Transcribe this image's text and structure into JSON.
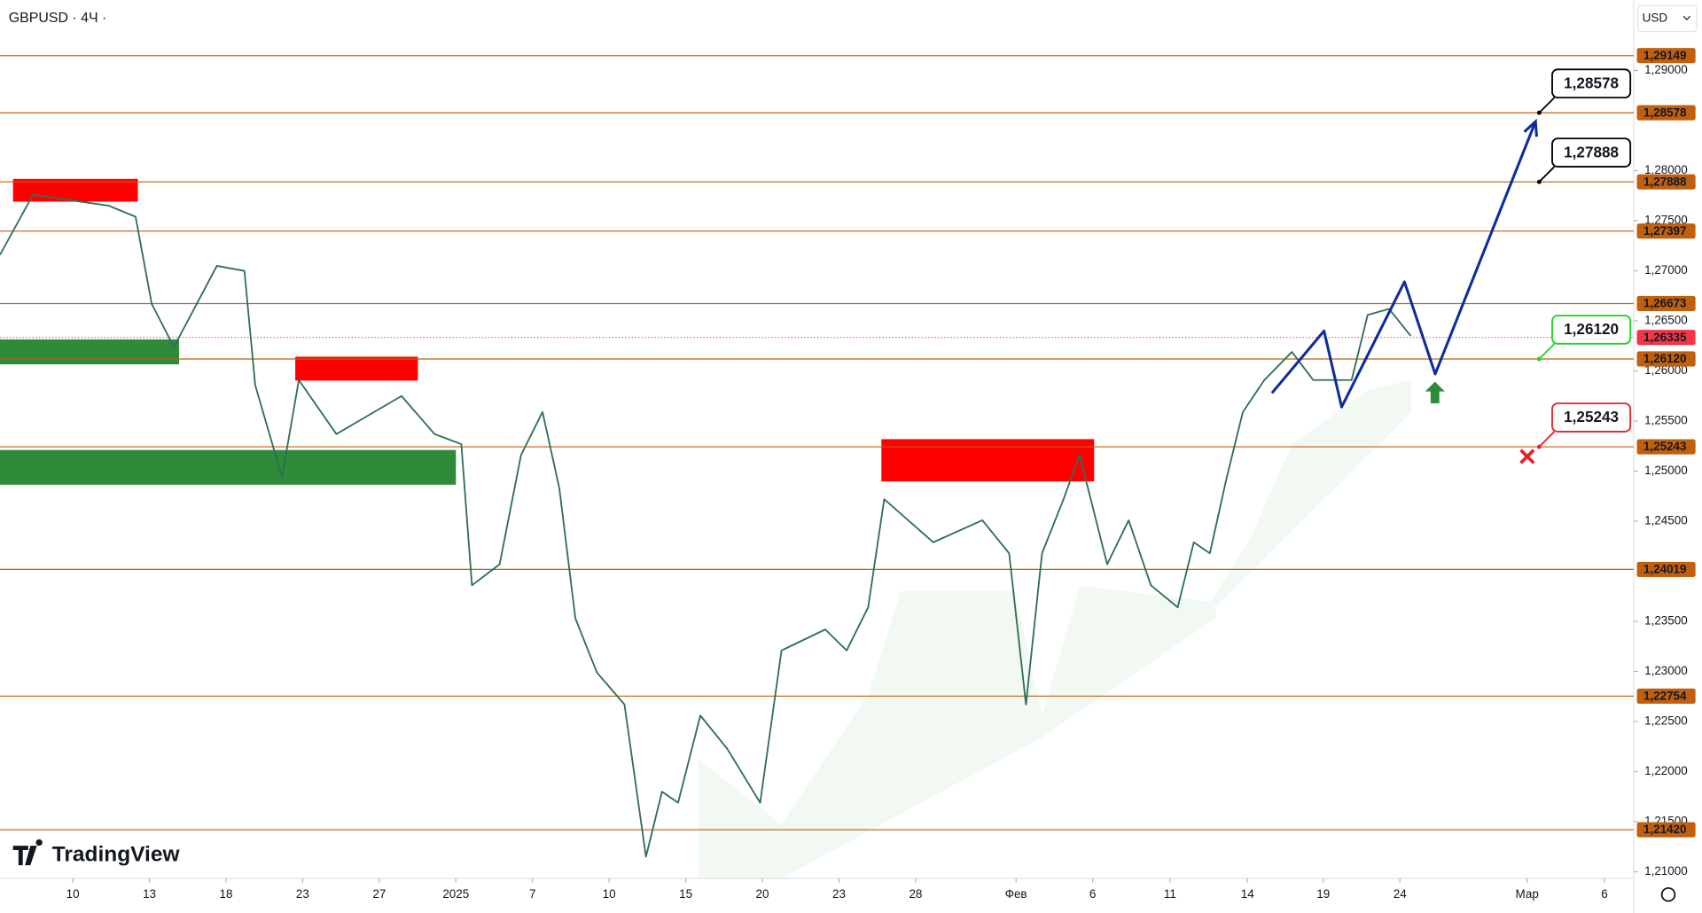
{
  "header": {
    "symbol": "GBPUSD · 4Ч ·",
    "currency": "USD",
    "logo": "TradingView"
  },
  "chart_data": {
    "type": "line",
    "xlim": [
      -0.95,
      20.37
    ],
    "ylim": [
      1.20935,
      1.29704
    ],
    "xticks": [
      {
        "value": 0,
        "label": "10"
      },
      {
        "value": 1,
        "label": "13"
      },
      {
        "value": 2,
        "label": "18"
      },
      {
        "value": 3,
        "label": "23"
      },
      {
        "value": 4,
        "label": "27"
      },
      {
        "value": 5,
        "label": "2025"
      },
      {
        "value": 6,
        "label": "7"
      },
      {
        "value": 7,
        "label": "10"
      },
      {
        "value": 8,
        "label": "15"
      },
      {
        "value": 9,
        "label": "20"
      },
      {
        "value": 10,
        "label": "23"
      },
      {
        "value": 11,
        "label": "28"
      },
      {
        "value": 12.31,
        "label": "Фев"
      },
      {
        "value": 13.31,
        "label": "6"
      },
      {
        "value": 14.32,
        "label": "11"
      },
      {
        "value": 15.33,
        "label": "14"
      },
      {
        "value": 16.32,
        "label": "19"
      },
      {
        "value": 17.32,
        "label": "24"
      },
      {
        "value": 18.98,
        "label": "Мар"
      },
      {
        "value": 19.99,
        "label": "6"
      }
    ],
    "yticks": [
      {
        "value": 1.29,
        "label": "1,29000"
      },
      {
        "value": 1.28,
        "label": "1,28000"
      },
      {
        "value": 1.275,
        "label": "1,27500"
      },
      {
        "value": 1.27,
        "label": "1,27000"
      },
      {
        "value": 1.265,
        "label": "1,26500"
      },
      {
        "value": 1.26,
        "label": "1,26000"
      },
      {
        "value": 1.255,
        "label": "1,25500"
      },
      {
        "value": 1.25,
        "label": "1,25000"
      },
      {
        "value": 1.245,
        "label": "1,24500"
      },
      {
        "value": 1.235,
        "label": "1,23500"
      },
      {
        "value": 1.23,
        "label": "1,23000"
      },
      {
        "value": 1.225,
        "label": "1,22500"
      },
      {
        "value": 1.22,
        "label": "1,22000"
      },
      {
        "value": 1.215,
        "label": "1,21500"
      },
      {
        "value": 1.21,
        "label": "1,21000"
      }
    ],
    "series": [
      {
        "color": "#2f6e5a",
        "x": [
          -0.95,
          -0.52,
          0.47,
          0.82,
          1.03,
          1.32,
          1.88,
          2.24,
          2.38,
          2.73,
          2.95,
          3.44,
          4.29,
          4.72,
          5.07,
          5.21,
          5.57,
          5.85,
          6.13,
          6.35,
          6.56,
          6.84,
          7.2,
          7.48,
          7.69,
          7.9,
          8.19,
          8.54,
          8.97,
          9.25,
          9.82,
          10.1,
          10.38,
          10.59,
          11.23,
          11.87,
          12.22,
          12.44,
          12.65,
          12.93,
          13.14,
          13.5,
          13.78,
          14.07,
          14.42,
          14.63,
          14.84,
          15.06,
          15.27,
          15.55,
          15.91,
          16.19,
          16.69,
          16.9,
          17.18,
          17.46
        ],
        "values": [
          1.2716,
          1.2776,
          1.2765,
          1.2754,
          1.2667,
          1.2624,
          1.2705,
          1.27,
          1.2586,
          1.2494,
          1.2591,
          1.2537,
          1.2575,
          1.2537,
          1.2527,
          1.2386,
          1.2407,
          1.2516,
          1.2559,
          1.2483,
          1.2353,
          1.2299,
          1.2267,
          1.2115,
          1.218,
          1.2169,
          1.2256,
          1.2223,
          1.2169,
          1.2321,
          1.2342,
          1.2321,
          1.2364,
          1.2472,
          1.2429,
          1.2451,
          1.2418,
          1.2267,
          1.2418,
          1.2472,
          1.2516,
          1.2407,
          1.2451,
          1.2386,
          1.2364,
          1.2429,
          1.2418,
          1.2494,
          1.2559,
          1.2591,
          1.2619,
          1.2591,
          1.2591,
          1.2656,
          1.2662,
          1.2635
        ]
      },
      {
        "color": "#0d2d9c",
        "x": [
          15.65,
          16.33,
          16.56,
          17.38,
          17.78,
          19.09
        ],
        "values": [
          1.2578,
          1.264,
          1.2564,
          1.2689,
          1.2597,
          1.2849
        ]
      }
    ],
    "levels": [
      {
        "value": 1.29149,
        "label": "1,29149"
      },
      {
        "value": 1.28578,
        "label": "1,28578"
      },
      {
        "value": 1.27888,
        "label": "1,27888"
      },
      {
        "value": 1.27397,
        "label": "1,27397"
      },
      {
        "value": 1.26673,
        "label": "1,26673"
      },
      {
        "value": 1.2612,
        "label": "1,26120"
      },
      {
        "value": 1.25243,
        "label": "1,25243"
      },
      {
        "value": 1.24019,
        "label": "1,24019"
      },
      {
        "value": 1.22754,
        "label": "1,22754"
      },
      {
        "value": 1.2142,
        "label": "1,21420"
      }
    ],
    "level_color": "#c0600f",
    "current_price": {
      "value": 1.26335,
      "label": "1,26335",
      "color": "#f23645"
    },
    "annotations": [
      {
        "value": 1.28578,
        "label": "1,28578",
        "color": "#000000"
      },
      {
        "value": 1.27888,
        "label": "1,27888",
        "color": "#000000"
      },
      {
        "value": 1.2612,
        "label": "1,26120",
        "color": "#22d622"
      },
      {
        "value": 1.25243,
        "label": "1,25243",
        "color": "#e8222b"
      }
    ]
  }
}
